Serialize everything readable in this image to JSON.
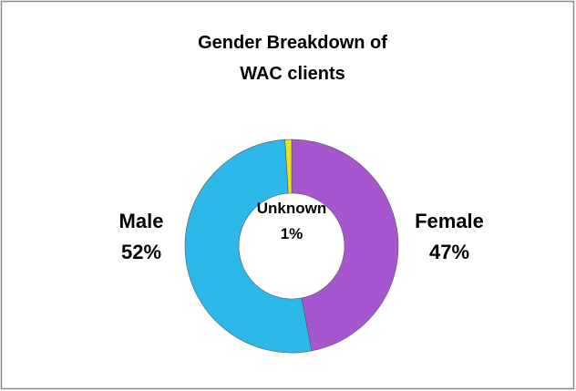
{
  "chart_data": {
    "type": "donut",
    "title": "Gender Breakdown of WAC clients",
    "categories": [
      "Female",
      "Male",
      "Unknown"
    ],
    "values": [
      47,
      52,
      1
    ],
    "value_labels": [
      "47%",
      "52%",
      "1%"
    ],
    "colors": [
      "#a656cf",
      "#2cb8e8",
      "#e6e21e"
    ]
  }
}
